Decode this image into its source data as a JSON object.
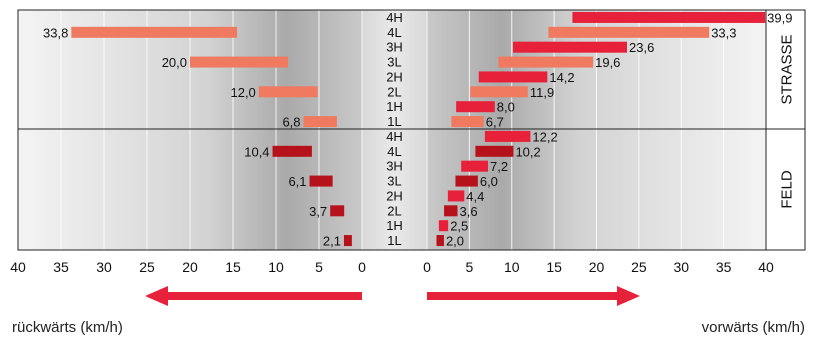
{
  "chart_data": {
    "type": "bar",
    "orientation": "horizontal",
    "gears": [
      "4H",
      "4L",
      "3H",
      "3L",
      "2H",
      "2L",
      "1H",
      "1L"
    ],
    "sections": [
      {
        "name": "STRASSE",
        "forward": {
          "values": [
            39.9,
            33.3,
            23.6,
            19.6,
            14.2,
            11.9,
            8.0,
            6.7
          ],
          "labels": [
            "39,9",
            "33,3",
            "23,6",
            "19,6",
            "14,2",
            "11,9",
            "8,0",
            "6,7"
          ]
        },
        "reverse": {
          "values": [
            null,
            33.8,
            null,
            20.0,
            null,
            12.0,
            null,
            6.8
          ],
          "labels": [
            "",
            "33,8",
            "",
            "20,0",
            "",
            "12,0",
            "",
            "6,8"
          ]
        }
      },
      {
        "name": "FELD",
        "forward": {
          "values": [
            12.2,
            10.2,
            7.2,
            6.0,
            4.4,
            3.6,
            2.5,
            2.0
          ],
          "labels": [
            "12,2",
            "10,2",
            "7,2",
            "6,0",
            "4,4",
            "3,6",
            "2,5",
            "2,0"
          ]
        },
        "reverse": {
          "values": [
            null,
            10.4,
            null,
            6.1,
            null,
            3.7,
            null,
            2.1
          ],
          "labels": [
            "",
            "10,4",
            "",
            "6,1",
            "",
            "3,7",
            "",
            "2,1"
          ]
        }
      }
    ],
    "x_ticks": [
      "40",
      "35",
      "30",
      "25",
      "20",
      "15",
      "10",
      "5",
      "0"
    ],
    "xlim": [
      0,
      40
    ],
    "xlabel_reverse": "rückwärts (km/h)",
    "xlabel_forward": "vorwärts (km/h)",
    "colors": {
      "strasse_forward": "#e8213a",
      "strasse_forward_light": "#f07a5f",
      "strasse_reverse": "#f07a5f",
      "feld_forward": "#e8213a",
      "feld_forward_dark": "#b5121b",
      "feld_reverse": "#b5121b",
      "arrow": "#e8213a"
    }
  }
}
